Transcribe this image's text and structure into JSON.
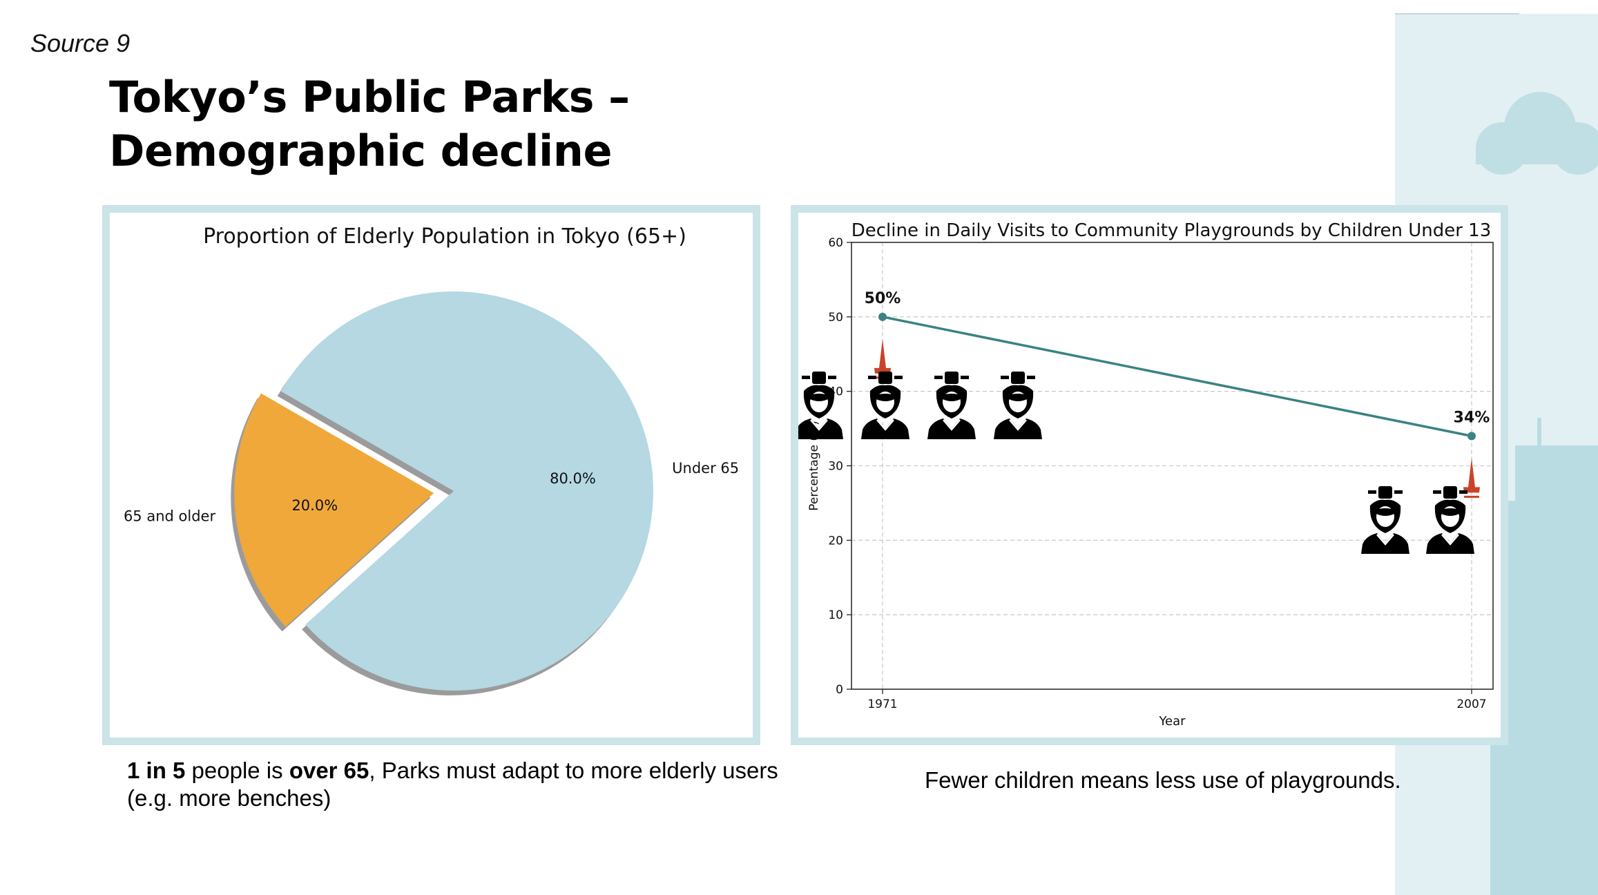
{
  "source_label": "Source 9",
  "title_line1": "Tokyo’s Public Parks –",
  "title_line2": "Demographic decline",
  "colors": {
    "panel_border": "#cae4e8",
    "elderly": "#f0a83b",
    "under65": "#b5d8e3",
    "line": "#3b8284",
    "arrow": "#c9432b",
    "deco": "#cde5ea"
  },
  "chart_data": [
    {
      "type": "pie",
      "title": "Proportion of Elderly Population in Tokyo (65+)",
      "slices": [
        {
          "label": "65 and older",
          "value": 20.0,
          "pct_label": "20.0%",
          "exploded": true
        },
        {
          "label": "Under 65",
          "value": 80.0,
          "pct_label": "80.0%",
          "exploded": false
        }
      ]
    },
    {
      "type": "line",
      "title": "Decline in Daily Visits to Community Playgrounds by Children Under 13",
      "xlabel": "Year",
      "ylabel": "Percentage (%)",
      "x": [
        "1971",
        "2007"
      ],
      "series": [
        {
          "values": [
            50,
            34
          ],
          "point_labels": [
            "50%",
            "34%"
          ]
        }
      ],
      "ylim": [
        0,
        60
      ],
      "yticks": [
        "0",
        "10",
        "20",
        "30",
        "40",
        "50",
        "60"
      ],
      "grid": true,
      "icons_per_year": [
        4,
        2
      ],
      "icon": "child-icon",
      "arrow_icon": "down-arrow-icon"
    }
  ],
  "captions": {
    "left_bold1": "1 in 5",
    "left_text1": " people is ",
    "left_bold2": "over 65",
    "left_text2": ", Parks must adapt to more elderly users (e.g. more benches)",
    "right": "Fewer children means less use of playgrounds."
  }
}
